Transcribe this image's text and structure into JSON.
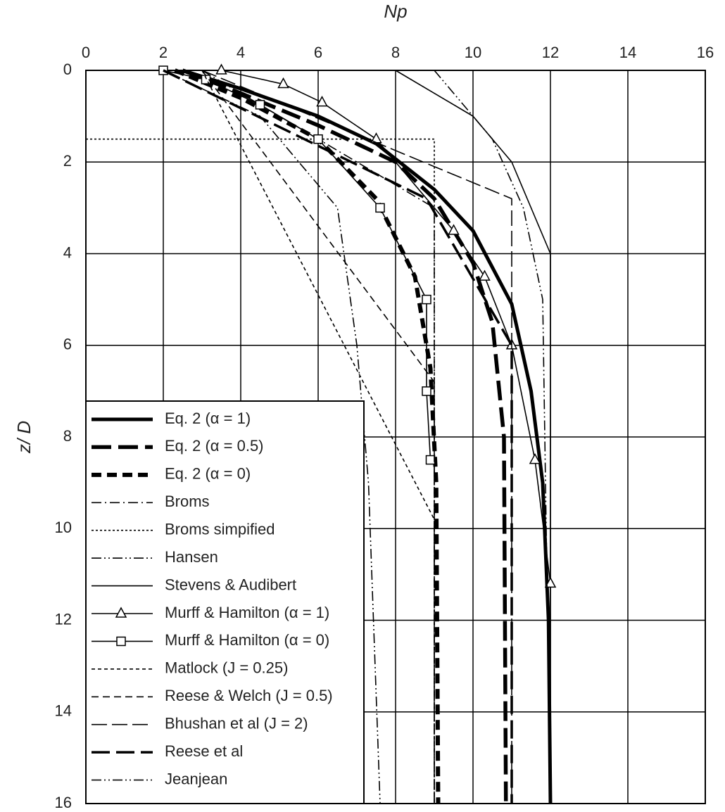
{
  "chart_data": {
    "type": "line",
    "xlabel": "Np",
    "ylabel": "z/ D",
    "xlim": [
      0,
      16
    ],
    "xticks": [
      0,
      2,
      4,
      6,
      8,
      10,
      12,
      14,
      16
    ],
    "ylim": [
      0,
      16
    ],
    "yticks": [
      0,
      2,
      4,
      6,
      8,
      10,
      12,
      14,
      16
    ],
    "y_inverted": true,
    "x_axis_position": "top",
    "grid": true,
    "legend": "lower-left",
    "series": [
      {
        "name": "Eq. 2 (α = 1)",
        "color": "#000000",
        "linestyle": "thick-solid",
        "x": [
          2.5,
          4,
          6,
          7.5,
          9,
          10,
          11,
          11.5,
          11.8,
          11.95,
          12
        ],
        "values": [
          0,
          0.4,
          1.0,
          1.6,
          2.6,
          3.5,
          5.1,
          7,
          9,
          12,
          16
        ]
      },
      {
        "name": "Eq. 2 (α = 0.5)",
        "color": "#000000",
        "linestyle": "thick-dashed",
        "x": [
          2.5,
          4,
          6,
          8,
          9,
          10,
          10.5,
          10.8,
          10.85
        ],
        "values": [
          0,
          0.5,
          1.2,
          2.0,
          2.8,
          4.2,
          5.5,
          8,
          16
        ]
      },
      {
        "name": "Eq. 2 (α = 0)",
        "color": "#000000",
        "linestyle": "thick-short-dashed",
        "x": [
          2.3,
          4,
          6,
          7.5,
          8.5,
          8.9,
          9.05,
          9.1
        ],
        "values": [
          0,
          0.6,
          1.5,
          2.8,
          4.5,
          6.5,
          9,
          16
        ]
      },
      {
        "name": "Broms",
        "color": "#000000",
        "linestyle": "dash-dot",
        "x": [
          3,
          9,
          9
        ],
        "values": [
          0,
          3,
          16
        ]
      },
      {
        "name": "Broms simpified",
        "color": "#000000",
        "linestyle": "dotted",
        "x": [
          0,
          9,
          9
        ],
        "values": [
          1.5,
          1.5,
          16
        ]
      },
      {
        "name": "Hansen",
        "color": "#000000",
        "linestyle": "dash-dot-dot",
        "x": [
          2,
          4.5,
          6.5,
          7,
          7.3,
          7.6
        ],
        "values": [
          0,
          1,
          3,
          6,
          9,
          16
        ]
      },
      {
        "name": "Stevens & Audibert",
        "color": "#000000",
        "linestyle": "solid",
        "x": [
          8,
          10,
          11,
          12,
          12
        ],
        "values": [
          0,
          1,
          2,
          4,
          16
        ]
      },
      {
        "name": "Murff & Hamilton (α = 1)",
        "color": "#000000",
        "linestyle": "solid",
        "marker": "triangle",
        "x": [
          3.5,
          5.1,
          6.1,
          7.5,
          9.5,
          10.3,
          11,
          11.6,
          12
        ],
        "values": [
          0,
          0.3,
          0.7,
          1.5,
          3.5,
          4.5,
          6,
          8.5,
          11.2
        ]
      },
      {
        "name": "Murff & Hamilton (α = 0)",
        "color": "#000000",
        "linestyle": "solid",
        "marker": "square",
        "x": [
          2,
          3.1,
          4.5,
          6,
          7.6,
          8.8,
          8.8,
          8.9
        ],
        "values": [
          0,
          0.2,
          0.75,
          1.5,
          3,
          5,
          7,
          8.5
        ]
      },
      {
        "name": "Matlock (J = 0.25)",
        "color": "#000000",
        "linestyle": "short-dashed",
        "x": [
          3,
          9,
          9
        ],
        "values": [
          0,
          9.8,
          16
        ]
      },
      {
        "name": "Reese & Welch (J = 0.5)",
        "color": "#000000",
        "linestyle": "dashed",
        "x": [
          3,
          9,
          9
        ],
        "values": [
          0,
          6.8,
          16
        ]
      },
      {
        "name": "Bhushan et al (J = 2)",
        "color": "#000000",
        "linestyle": "long-dashed",
        "x": [
          3,
          11,
          11
        ],
        "values": [
          0,
          2.8,
          16
        ]
      },
      {
        "name": "Reese et al",
        "color": "#000000",
        "linestyle": "thick-long-dashed",
        "x": [
          2,
          8.8,
          11,
          11
        ],
        "values": [
          0,
          2.8,
          6,
          16
        ]
      },
      {
        "name": "Jeanjean",
        "color": "#000000",
        "linestyle": "dash-dot-dot",
        "x": [
          9,
          10.5,
          11.3,
          11.8,
          12
        ],
        "values": [
          0,
          1.5,
          3,
          5,
          16
        ]
      }
    ]
  }
}
